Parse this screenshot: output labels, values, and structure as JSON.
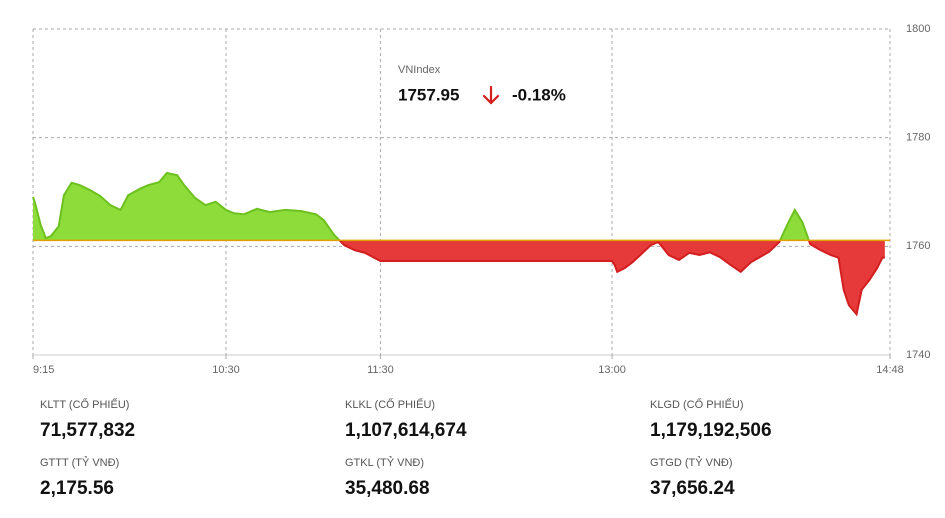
{
  "chart_data": {
    "type": "area",
    "index_name": "VNIndex",
    "last_value": 1757.95,
    "change": {
      "value": -0.18,
      "label": "-0.18%"
    },
    "reference_line": 1761.1,
    "up_color": "#8ddc3a",
    "up_line_color": "#6cc11f",
    "down_color": "#e63a3a",
    "down_line_color": "#d21e1e",
    "reference_color": "#e0a100",
    "x": [
      "9:15",
      "9:16",
      "9:18",
      "9:20",
      "9:22",
      "9:25",
      "9:27",
      "9:30",
      "9:33",
      "9:37",
      "9:41",
      "9:45",
      "9:49",
      "9:52",
      "9:57",
      "10:00",
      "10:04",
      "10:07",
      "10:11",
      "10:14",
      "10:18",
      "10:22",
      "10:26",
      "10:30",
      "10:33",
      "10:37",
      "10:42",
      "10:47",
      "10:53",
      "10:59",
      "11:05",
      "11:08",
      "11:12",
      "11:16",
      "11:20",
      "11:24",
      "11:30",
      "13:00",
      "13:01",
      "13:02",
      "13:05",
      "13:08",
      "13:11",
      "13:15",
      "13:18",
      "13:22",
      "13:26",
      "13:30",
      "13:34",
      "13:38",
      "13:42",
      "13:46",
      "13:50",
      "13:54",
      "13:57",
      "14:01",
      "14:05",
      "14:08",
      "14:11",
      "14:14",
      "14:17",
      "14:21",
      "14:25",
      "14:28",
      "14:30",
      "14:32",
      "14:35",
      "14:37",
      "14:40",
      "14:43",
      "14:45",
      "14:46"
    ],
    "values": [
      1769.1,
      1767.6,
      1763.9,
      1761.5,
      1761.9,
      1763.7,
      1769.4,
      1771.7,
      1771.3,
      1770.4,
      1769.3,
      1767.6,
      1766.7,
      1769.4,
      1770.7,
      1771.3,
      1771.8,
      1773.5,
      1773.1,
      1771.1,
      1768.9,
      1767.6,
      1768.2,
      1766.7,
      1766.1,
      1765.9,
      1766.9,
      1766.3,
      1766.7,
      1766.5,
      1765.9,
      1764.8,
      1762.1,
      1760.2,
      1759.3,
      1758.8,
      1757.3,
      1757.3,
      1756.6,
      1755.3,
      1756.0,
      1757.1,
      1758.4,
      1760.2,
      1760.8,
      1758.4,
      1757.5,
      1758.8,
      1758.4,
      1758.9,
      1758.0,
      1756.6,
      1755.3,
      1757.1,
      1757.9,
      1759.0,
      1760.8,
      1763.9,
      1766.7,
      1764.4,
      1760.4,
      1759.3,
      1758.4,
      1757.9,
      1752.0,
      1749.2,
      1747.5,
      1752.0,
      1753.8,
      1756.0,
      1757.9,
      1757.95
    ],
    "xlim": [
      "9:15",
      "14:48"
    ],
    "xticks": [
      "9:15",
      "10:30",
      "11:30",
      "13:00",
      "14:48"
    ],
    "ylim": [
      1740,
      1800
    ],
    "yticks": [
      1740,
      1760,
      1780,
      1800
    ],
    "grid": true,
    "stats": [
      {
        "label": "KLTT (CỔ PHIẾU)",
        "value": "71,577,832"
      },
      {
        "label": "KLKL (CỔ PHIẾU)",
        "value": "1,107,614,674"
      },
      {
        "label": "KLGD (CỔ PHIẾU)",
        "value": "1,179,192,506"
      },
      {
        "label": "GTTT (TỶ VNĐ)",
        "value": "2,175.56"
      },
      {
        "label": "GTKL (TỶ VNĐ)",
        "value": "35,480.68"
      },
      {
        "label": "GTGD (TỶ VNĐ)",
        "value": "37,656.24"
      }
    ]
  }
}
